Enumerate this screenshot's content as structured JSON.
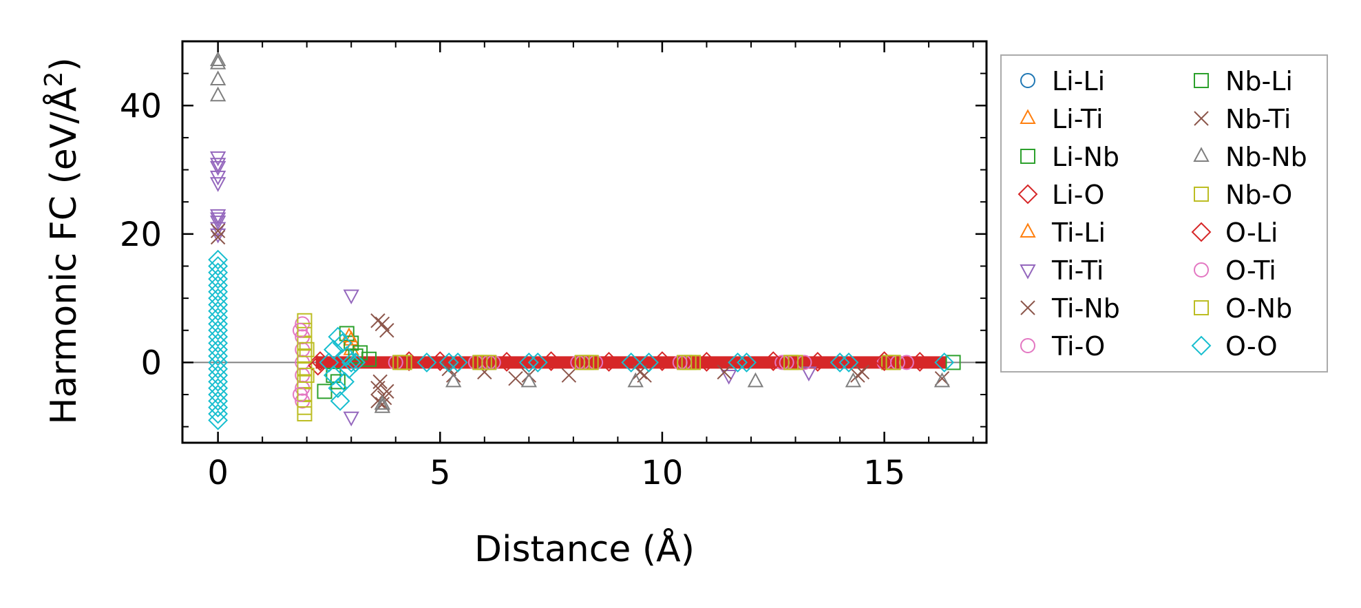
{
  "chart_data": {
    "type": "scatter",
    "title": "",
    "xlabel": "Distance (Å)",
    "ylabel_main": "Harmonic FC (eV/Å",
    "ylabel_sup": "2",
    "ylabel_close": ")",
    "xlim": [
      -0.8,
      17.3
    ],
    "ylim": [
      -12.5,
      50.0
    ],
    "xticks": [
      0,
      5,
      10,
      15
    ],
    "xtick_labels": [
      "0",
      "5",
      "10",
      "15"
    ],
    "xminor": [
      1,
      2,
      3,
      4,
      6,
      7,
      8,
      9,
      11,
      12,
      13,
      14,
      16,
      17
    ],
    "yticks": [
      0,
      20,
      40
    ],
    "ytick_labels": [
      "0",
      "20",
      "40"
    ],
    "yminor": [
      -10,
      10,
      30
    ],
    "zero_line": true,
    "grid": false,
    "legend_placement": "outside-right",
    "series": [
      {
        "name": "Li-Li",
        "marker": "circle",
        "color": "#1f77b4",
        "points": []
      },
      {
        "name": "Li-Ti",
        "marker": "triangle-up",
        "color": "#ff7f0e",
        "points": [
          [
            3.0,
            3.5
          ],
          [
            3.0,
            2.0
          ]
        ]
      },
      {
        "name": "Li-Nb",
        "marker": "square",
        "color": "#2ca02c",
        "points": [
          [
            2.4,
            -4.5
          ],
          [
            2.6,
            -2.0
          ],
          [
            2.9,
            4.5
          ],
          [
            3.0,
            3.0
          ],
          [
            3.1,
            1.0
          ],
          [
            3.4,
            0.5
          ],
          [
            16.55,
            0
          ]
        ]
      },
      {
        "name": "Li-O",
        "marker": "diamond",
        "color": "#d62728",
        "band": [
          2.2,
          16.4
        ],
        "points": [
          [
            2.3,
            0.2
          ],
          [
            4.3,
            0.2
          ],
          [
            6.5,
            0.1
          ],
          [
            8.8,
            0.1
          ],
          [
            11.0,
            0.1
          ],
          [
            13.5,
            0.1
          ],
          [
            15.8,
            0.1
          ]
        ]
      },
      {
        "name": "Ti-Li",
        "marker": "triangle-up",
        "color": "#ff7f0e",
        "points": [
          [
            2.95,
            4.0
          ]
        ]
      },
      {
        "name": "Ti-Ti",
        "marker": "triangle-down",
        "color": "#9467bd",
        "points": [
          [
            0,
            32
          ],
          [
            0,
            31
          ],
          [
            0,
            30.5
          ],
          [
            0,
            29
          ],
          [
            0,
            28
          ],
          [
            0,
            23
          ],
          [
            0,
            22.5
          ],
          [
            0,
            22
          ],
          [
            0,
            21
          ],
          [
            0,
            20
          ],
          [
            3.0,
            10.5
          ],
          [
            3.0,
            -8.5
          ],
          [
            11.5,
            -2.0
          ],
          [
            13.3,
            -1.5
          ]
        ]
      },
      {
        "name": "Ti-Nb",
        "marker": "x",
        "color": "#8c564b",
        "points": [
          [
            0,
            20.5
          ],
          [
            0,
            19.5
          ],
          [
            3.6,
            6.5
          ],
          [
            3.7,
            6.0
          ],
          [
            3.8,
            5.0
          ],
          [
            3.6,
            -6.0
          ],
          [
            3.7,
            -6.5
          ],
          [
            3.8,
            -4.5
          ],
          [
            3.65,
            -3.0
          ],
          [
            5.3,
            -2.0
          ],
          [
            6.0,
            -1.5
          ],
          [
            6.7,
            -2.5
          ],
          [
            7.9,
            -2.0
          ],
          [
            9.6,
            -2.0
          ],
          [
            11.4,
            -1.5
          ],
          [
            14.4,
            -2.0
          ],
          [
            16.3,
            -2.5
          ]
        ]
      },
      {
        "name": "Ti-O",
        "marker": "circle",
        "color": "#e377c2",
        "band_points": true,
        "points": [
          [
            1.9,
            6
          ],
          [
            1.9,
            4
          ],
          [
            1.9,
            2
          ],
          [
            1.9,
            0
          ],
          [
            1.9,
            -2
          ],
          [
            1.9,
            -4
          ],
          [
            1.9,
            -6
          ],
          [
            4.0,
            0
          ],
          [
            5.8,
            0
          ],
          [
            6.2,
            0
          ],
          [
            8.1,
            0
          ],
          [
            8.5,
            0
          ],
          [
            10.5,
            0
          ],
          [
            12.7,
            0
          ],
          [
            13.2,
            0
          ],
          [
            15.0,
            0
          ],
          [
            15.5,
            0
          ]
        ]
      },
      {
        "name": "Nb-Li",
        "marker": "square",
        "color": "#2ca02c",
        "points": [
          [
            2.7,
            -3.0
          ],
          [
            3.2,
            1.5
          ]
        ]
      },
      {
        "name": "Nb-Ti",
        "marker": "x",
        "color": "#8c564b",
        "points": [
          [
            3.75,
            -5.5
          ],
          [
            3.6,
            -4.0
          ],
          [
            5.2,
            -1.0
          ],
          [
            7.0,
            -2.0
          ],
          [
            9.5,
            -1.5
          ],
          [
            14.5,
            -1.5
          ]
        ]
      },
      {
        "name": "Nb-Nb",
        "marker": "triangle-up",
        "color": "#7f7f7f",
        "points": [
          [
            0,
            47
          ],
          [
            0,
            46.5
          ],
          [
            0,
            44
          ],
          [
            0,
            41.5
          ],
          [
            3.7,
            -6.5
          ],
          [
            3.7,
            -7.0
          ],
          [
            5.3,
            -3.0
          ],
          [
            7.0,
            -3.0
          ],
          [
            9.4,
            -3.0
          ],
          [
            12.1,
            -3.0
          ],
          [
            14.3,
            -3.0
          ],
          [
            16.3,
            -3.0
          ]
        ]
      },
      {
        "name": "Nb-O",
        "marker": "square",
        "color": "#bcbd22",
        "points": [
          [
            1.95,
            6.5
          ],
          [
            1.95,
            5
          ],
          [
            1.95,
            3
          ],
          [
            1.95,
            1
          ],
          [
            1.95,
            -1
          ],
          [
            1.95,
            -3
          ],
          [
            1.95,
            -5
          ],
          [
            1.95,
            -7
          ],
          [
            1.95,
            -8
          ],
          [
            4.2,
            0
          ],
          [
            5.9,
            0
          ],
          [
            6.0,
            0
          ],
          [
            8.3,
            0
          ],
          [
            8.4,
            0
          ],
          [
            10.6,
            0
          ],
          [
            10.7,
            0
          ],
          [
            12.9,
            0
          ],
          [
            13.0,
            0
          ],
          [
            15.1,
            0
          ],
          [
            15.2,
            0
          ]
        ]
      },
      {
        "name": "O-Li",
        "marker": "diamond",
        "color": "#d62728",
        "points": [
          [
            2.25,
            -0.5
          ],
          [
            5.0,
            0.2
          ],
          [
            7.5,
            0.2
          ],
          [
            10.0,
            0.2
          ],
          [
            12.5,
            0.2
          ],
          [
            15.0,
            0.2
          ]
        ]
      },
      {
        "name": "O-Ti",
        "marker": "circle",
        "color": "#e377c2",
        "points": [
          [
            1.85,
            5.0
          ],
          [
            1.85,
            -5.0
          ],
          [
            6.1,
            0
          ],
          [
            8.2,
            0
          ],
          [
            10.4,
            0
          ],
          [
            12.8,
            0
          ],
          [
            15.3,
            0
          ]
        ]
      },
      {
        "name": "O-Nb",
        "marker": "square",
        "color": "#bcbd22",
        "points": [
          [
            2.0,
            2.0
          ],
          [
            2.0,
            -2.0
          ],
          [
            4.1,
            0
          ],
          [
            6.1,
            0
          ],
          [
            8.2,
            0
          ],
          [
            10.5,
            0
          ],
          [
            12.9,
            0
          ],
          [
            15.2,
            0
          ]
        ]
      },
      {
        "name": "O-O",
        "marker": "diamond",
        "color": "#17becf",
        "points": [
          [
            0,
            16
          ],
          [
            0,
            15
          ],
          [
            0,
            14
          ],
          [
            0,
            13
          ],
          [
            0,
            12
          ],
          [
            0,
            11
          ],
          [
            0,
            10
          ],
          [
            0,
            9
          ],
          [
            0,
            8
          ],
          [
            0,
            7
          ],
          [
            0,
            6
          ],
          [
            0,
            5
          ],
          [
            0,
            4
          ],
          [
            0,
            3
          ],
          [
            0,
            2
          ],
          [
            0,
            1
          ],
          [
            0,
            0
          ],
          [
            0,
            -1
          ],
          [
            0,
            -2
          ],
          [
            0,
            -3
          ],
          [
            0,
            -4
          ],
          [
            0,
            -5
          ],
          [
            0,
            -6
          ],
          [
            0,
            -7
          ],
          [
            0,
            -8
          ],
          [
            0,
            -9
          ],
          [
            2.5,
            0
          ],
          [
            2.6,
            2
          ],
          [
            2.7,
            4
          ],
          [
            2.8,
            3
          ],
          [
            2.9,
            1
          ],
          [
            2.6,
            -2
          ],
          [
            2.7,
            -4
          ],
          [
            2.75,
            -6
          ],
          [
            2.85,
            -3
          ],
          [
            2.95,
            -1
          ],
          [
            3.0,
            0
          ],
          [
            3.1,
            0
          ],
          [
            4.7,
            0
          ],
          [
            5.2,
            0
          ],
          [
            5.4,
            0
          ],
          [
            7.0,
            0
          ],
          [
            7.2,
            0
          ],
          [
            9.3,
            0
          ],
          [
            9.7,
            0
          ],
          [
            11.7,
            0
          ],
          [
            11.9,
            0
          ],
          [
            14.0,
            0
          ],
          [
            14.2,
            0
          ],
          [
            16.35,
            0
          ]
        ]
      }
    ]
  }
}
